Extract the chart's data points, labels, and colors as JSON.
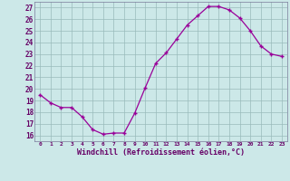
{
  "x": [
    0,
    1,
    2,
    3,
    4,
    5,
    6,
    7,
    8,
    9,
    10,
    11,
    12,
    13,
    14,
    15,
    16,
    17,
    18,
    19,
    20,
    21,
    22,
    23
  ],
  "y": [
    19.5,
    18.8,
    18.4,
    18.4,
    17.6,
    16.5,
    16.1,
    16.2,
    16.2,
    17.9,
    20.1,
    22.2,
    23.1,
    24.3,
    25.5,
    26.3,
    27.1,
    27.1,
    26.8,
    26.1,
    25.0,
    23.7,
    23.0,
    22.8
  ],
  "line_color": "#990099",
  "marker": "+",
  "bg_color": "#cce8e8",
  "grid_color": "#99bbbb",
  "axis_label_color": "#660066",
  "tick_color": "#660066",
  "xlabel": "Windchill (Refroidissement éolien,°C)",
  "ylabel_ticks": [
    16,
    17,
    18,
    19,
    20,
    21,
    22,
    23,
    24,
    25,
    26,
    27
  ],
  "xlim": [
    -0.5,
    23.5
  ],
  "ylim": [
    15.5,
    27.5
  ],
  "xticks": [
    0,
    1,
    2,
    3,
    4,
    5,
    6,
    7,
    8,
    9,
    10,
    11,
    12,
    13,
    14,
    15,
    16,
    17,
    18,
    19,
    20,
    21,
    22,
    23
  ]
}
